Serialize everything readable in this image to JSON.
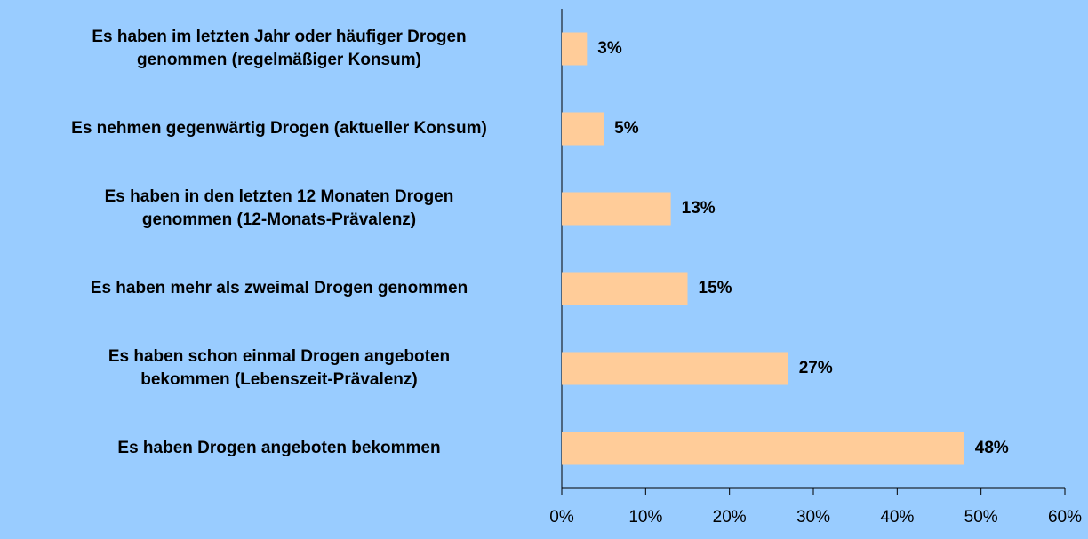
{
  "chart_data": {
    "type": "bar",
    "orientation": "horizontal",
    "categories": [
      "Es haben im letzten Jahr oder häufiger Drogen\ngenommen (regelmäßiger Konsum)",
      "Es nehmen gegenwärtig Drogen (aktueller Konsum)",
      "Es haben in den letzten 12 Monaten Drogen\ngenommen (12-Monats-Prävalenz)",
      "Es haben mehr als zweimal Drogen genommen",
      "Es haben schon einmal Drogen angeboten\nbekommen (Lebenszeit-Prävalenz)",
      "Es haben Drogen angeboten bekommen"
    ],
    "values": [
      3,
      5,
      13,
      15,
      27,
      48
    ],
    "value_labels": [
      "3%",
      "5%",
      "13%",
      "15%",
      "27%",
      "48%"
    ],
    "color": "#ffcc99",
    "xlim": [
      0,
      60
    ],
    "xticks": [
      {
        "value": 0,
        "label": "0%"
      },
      {
        "value": 10,
        "label": "10%"
      },
      {
        "value": 20,
        "label": "20%"
      },
      {
        "value": 30,
        "label": "30%"
      },
      {
        "value": 40,
        "label": "40%"
      },
      {
        "value": 50,
        "label": "50%"
      },
      {
        "value": 60,
        "label": "60%"
      }
    ],
    "grid": false
  }
}
